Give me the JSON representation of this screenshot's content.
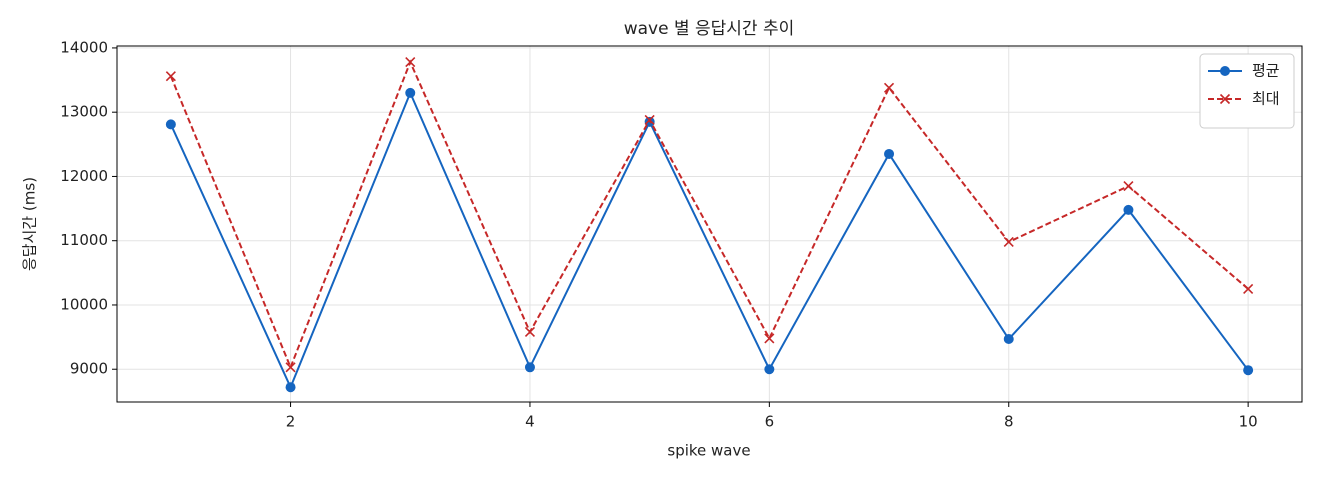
{
  "chart_data": {
    "type": "line",
    "title": "wave 별 응답시간 추이",
    "x_label": "spike wave",
    "y_label": "응답시간 (ms)",
    "x": [
      1,
      2,
      3,
      4,
      5,
      6,
      7,
      8,
      9,
      10
    ],
    "series": [
      {
        "name": "평균",
        "color": "#1565c0",
        "marker": "circle",
        "dashed": false,
        "values": [
          12810,
          8720,
          13300,
          9030,
          12850,
          9000,
          12350,
          9470,
          11480,
          8985
        ]
      },
      {
        "name": "최대",
        "color": "#c62828",
        "marker": "x",
        "dashed": true,
        "values": [
          13560,
          9030,
          13780,
          9580,
          12880,
          9480,
          13380,
          10980,
          11850,
          10250
        ]
      }
    ],
    "xlim": [
      0.55,
      10.45
    ],
    "ylim": [
      8490,
      14030
    ],
    "xticks": [
      2,
      4,
      6,
      8,
      10
    ],
    "yticks": [
      9000,
      10000,
      11000,
      12000,
      13000,
      14000
    ],
    "grid": true,
    "legend": "upper-right"
  }
}
